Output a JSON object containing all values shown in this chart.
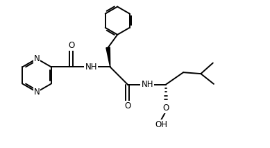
{
  "background": "#ffffff",
  "line_color": "#000000",
  "line_width": 1.4,
  "font_size": 8.5,
  "figsize": [
    3.89,
    2.13
  ],
  "dpi": 100,
  "xlim": [
    0,
    10
  ],
  "ylim": [
    0,
    5.3
  ]
}
